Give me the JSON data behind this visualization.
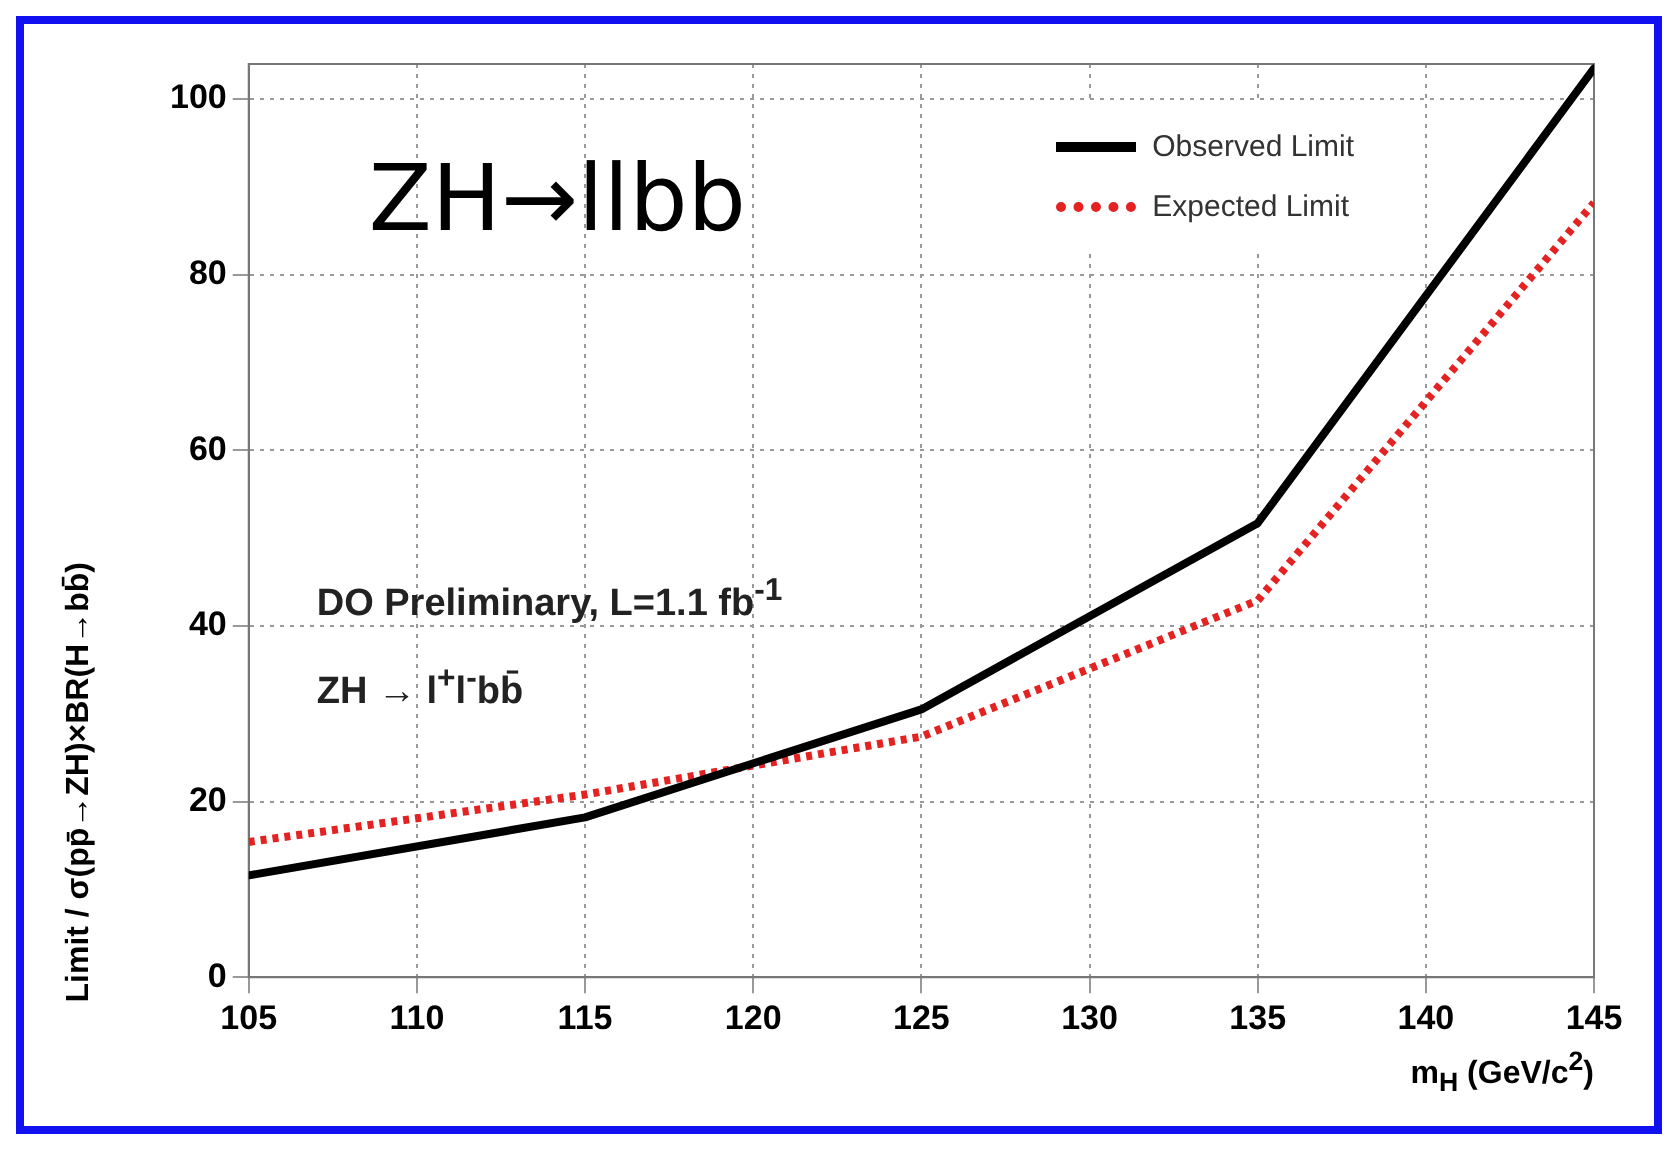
{
  "chart_data": {
    "type": "line",
    "title": "ZH→llbb",
    "xlabel": "m$_{H}$ (GeV/c$^{2}$)",
    "ylabel": "Limit / σ(pp̄→ZH)×BR(H→bb̄)",
    "annotations": [
      "DO Preliminary, L=1.1 fb$^{-1}$",
      "ZH → l$^{+}$l$^{-}$bb̄"
    ],
    "x": [
      105,
      115,
      125,
      135,
      145
    ],
    "series": [
      {
        "name": "Observed Limit",
        "color": "#000000",
        "values": [
          11.6,
          18.2,
          30.5,
          51.7,
          103.5
        ],
        "line_style": "solid"
      },
      {
        "name": "Expected Limit",
        "color": "#e52222",
        "values": [
          15.4,
          20.8,
          27.4,
          42.9,
          88.2
        ],
        "line_style": "dotted"
      }
    ],
    "xlim": [
      105,
      145
    ],
    "xticks": [
      105,
      110,
      115,
      120,
      125,
      130,
      135,
      140,
      145
    ],
    "ylim": [
      0,
      104
    ],
    "yticks": [
      0,
      20,
      40,
      60,
      80,
      100
    ],
    "grid": true,
    "legend": "top right",
    "marker": "none"
  }
}
